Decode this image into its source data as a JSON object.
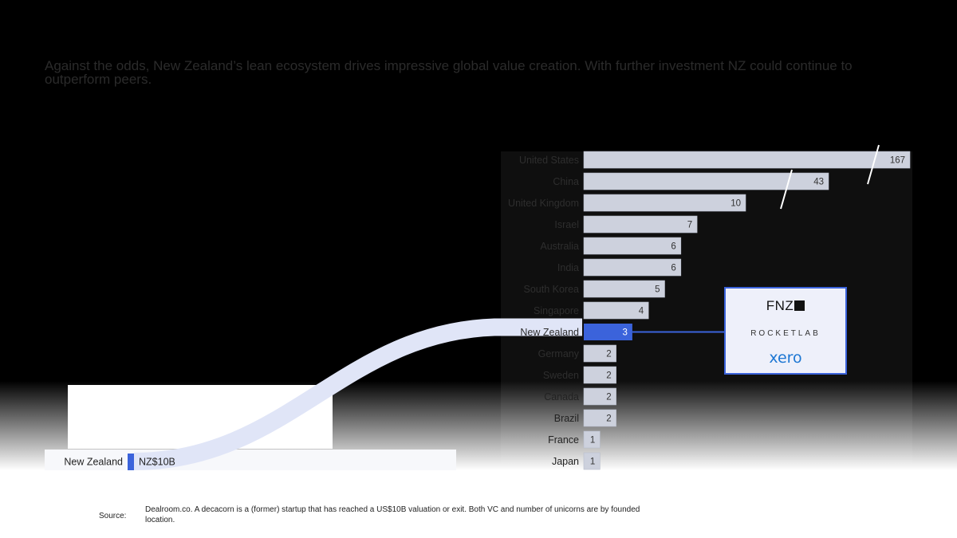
{
  "subtitle": "Against the odds, New Zealand’s lean ecosystem drives impressive global value creation. With further investment NZ could continue to outperform peers.",
  "chart_data": [
    {
      "type": "bar",
      "orientation": "horizontal",
      "categories": [
        "United States",
        "China",
        "United Kingdom",
        "Israel",
        "Australia",
        "India",
        "South Korea",
        "Singapore",
        "New Zealand",
        "Germany",
        "Sweden",
        "Canada",
        "Brazil",
        "France",
        "Japan"
      ],
      "values": [
        167,
        43,
        10,
        7,
        6,
        6,
        5,
        4,
        3,
        2,
        2,
        2,
        2,
        1,
        1
      ],
      "value_labels": [
        "167",
        "43",
        "10",
        "7",
        "6",
        "6",
        "5",
        "4",
        "3",
        "2",
        "2",
        "2",
        "2",
        "1",
        "1"
      ],
      "highlight": "New Zealand",
      "broken_axis_bars": [
        "United States",
        "China"
      ],
      "colors": {
        "default": "#cdd1dd",
        "highlight": "#3b63db"
      }
    },
    {
      "type": "bar",
      "orientation": "horizontal",
      "categories": [
        "New Zealand"
      ],
      "values": [
        10
      ],
      "value_labels": [
        "NZ$10B"
      ],
      "colors": {
        "bar": "#3b63db"
      }
    }
  ],
  "logos": {
    "fnz": "FNZ",
    "rocketlab": "ROCKETLAB",
    "xero": "xero"
  },
  "source": {
    "label": "Source:",
    "text": "Dealroom.co. A decacorn is a (former) startup that has reached a US$10B valuation or exit. Both VC and number of unicorns are by founded location."
  }
}
